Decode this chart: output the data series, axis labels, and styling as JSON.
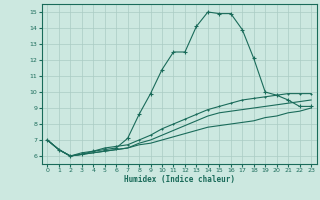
{
  "xlabel": "Humidex (Indice chaleur)",
  "bg_color": "#cce8e0",
  "grid_color": "#aaccC4",
  "line_color": "#1a6b5a",
  "xlim": [
    -0.5,
    23.5
  ],
  "ylim": [
    5.5,
    15.5
  ],
  "yticks": [
    6,
    7,
    8,
    9,
    10,
    11,
    12,
    13,
    14,
    15
  ],
  "xticks": [
    0,
    1,
    2,
    3,
    4,
    5,
    6,
    7,
    8,
    9,
    10,
    11,
    12,
    13,
    14,
    15,
    16,
    17,
    18,
    19,
    20,
    21,
    22,
    23
  ],
  "lines": [
    {
      "x": [
        0,
        1,
        2,
        3,
        4,
        5,
        6,
        7,
        8,
        9,
        10,
        11,
        12,
        13,
        14,
        15,
        16,
        17,
        18,
        19,
        20,
        21,
        22,
        23
      ],
      "y": [
        7.0,
        6.4,
        6.0,
        6.1,
        6.3,
        6.4,
        6.5,
        7.1,
        8.6,
        9.9,
        11.4,
        12.5,
        12.5,
        14.1,
        15.0,
        14.9,
        14.9,
        13.9,
        12.1,
        10.0,
        9.8,
        9.5,
        9.1,
        9.1
      ],
      "marker": "+",
      "ms": 3
    },
    {
      "x": [
        0,
        1,
        2,
        3,
        4,
        5,
        6,
        7,
        8,
        9,
        10,
        11,
        12,
        13,
        14,
        15,
        16,
        17,
        18,
        19,
        20,
        21,
        22,
        23
      ],
      "y": [
        7.0,
        6.4,
        6.0,
        6.1,
        6.2,
        6.3,
        6.4,
        6.5,
        6.7,
        6.8,
        7.0,
        7.2,
        7.4,
        7.6,
        7.8,
        7.9,
        8.0,
        8.1,
        8.2,
        8.4,
        8.5,
        8.7,
        8.8,
        9.0
      ],
      "marker": null,
      "ms": 0
    },
    {
      "x": [
        0,
        1,
        2,
        3,
        4,
        5,
        6,
        7,
        8,
        9,
        10,
        11,
        12,
        13,
        14,
        15,
        16,
        17,
        18,
        19,
        20,
        21,
        22,
        23
      ],
      "y": [
        7.0,
        6.4,
        6.0,
        6.1,
        6.2,
        6.3,
        6.4,
        6.5,
        6.8,
        7.0,
        7.3,
        7.6,
        7.9,
        8.2,
        8.5,
        8.7,
        8.8,
        8.9,
        9.0,
        9.1,
        9.2,
        9.3,
        9.4,
        9.5
      ],
      "marker": null,
      "ms": 0
    },
    {
      "x": [
        0,
        1,
        2,
        3,
        4,
        5,
        6,
        7,
        8,
        9,
        10,
        11,
        12,
        13,
        14,
        15,
        16,
        17,
        18,
        19,
        20,
        21,
        22,
        23
      ],
      "y": [
        7.0,
        6.4,
        6.0,
        6.2,
        6.3,
        6.5,
        6.6,
        6.7,
        7.0,
        7.3,
        7.7,
        8.0,
        8.3,
        8.6,
        8.9,
        9.1,
        9.3,
        9.5,
        9.6,
        9.7,
        9.8,
        9.9,
        9.9,
        9.9
      ],
      "marker": "+",
      "ms": 2
    }
  ]
}
